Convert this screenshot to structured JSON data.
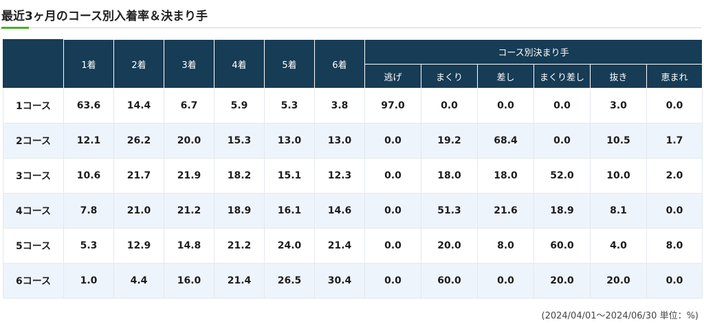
{
  "title": "最近3ヶ月のコース別入着率＆決まり手",
  "table": {
    "finish_headers": [
      "1着",
      "2着",
      "3着",
      "4着",
      "5着",
      "6着"
    ],
    "method_group_header": "コース別決まり手",
    "method_headers": [
      "逃げ",
      "まくり",
      "差し",
      "まくり差し",
      "抜き",
      "恵まれ"
    ],
    "rows": [
      {
        "course": "1コース",
        "values": [
          "63.6",
          "14.4",
          "6.7",
          "5.9",
          "5.3",
          "3.8",
          "97.0",
          "0.0",
          "0.0",
          "0.0",
          "3.0",
          "0.0"
        ]
      },
      {
        "course": "2コース",
        "values": [
          "12.1",
          "26.2",
          "20.0",
          "15.3",
          "13.0",
          "13.0",
          "0.0",
          "19.2",
          "68.4",
          "0.0",
          "10.5",
          "1.7"
        ]
      },
      {
        "course": "3コース",
        "values": [
          "10.6",
          "21.7",
          "21.9",
          "18.2",
          "15.1",
          "12.3",
          "0.0",
          "18.0",
          "18.0",
          "52.0",
          "10.0",
          "2.0"
        ]
      },
      {
        "course": "4コース",
        "values": [
          "7.8",
          "21.0",
          "21.2",
          "18.9",
          "16.1",
          "14.6",
          "0.0",
          "51.3",
          "21.6",
          "18.9",
          "8.1",
          "0.0"
        ]
      },
      {
        "course": "5コース",
        "values": [
          "5.3",
          "12.9",
          "14.8",
          "21.2",
          "24.0",
          "21.4",
          "0.0",
          "20.0",
          "8.0",
          "60.0",
          "4.0",
          "8.0"
        ]
      },
      {
        "course": "6コース",
        "values": [
          "1.0",
          "4.4",
          "16.0",
          "21.4",
          "26.5",
          "30.4",
          "0.0",
          "60.0",
          "0.0",
          "20.0",
          "20.0",
          "0.0"
        ]
      }
    ]
  },
  "footnote": "(2024/04/01～2024/06/30 単位：%)",
  "colors": {
    "header_bg": "#173c55",
    "header_text": "#ffffff",
    "row_alt_bg": "#eef4fb",
    "accent": "#45b21f"
  }
}
